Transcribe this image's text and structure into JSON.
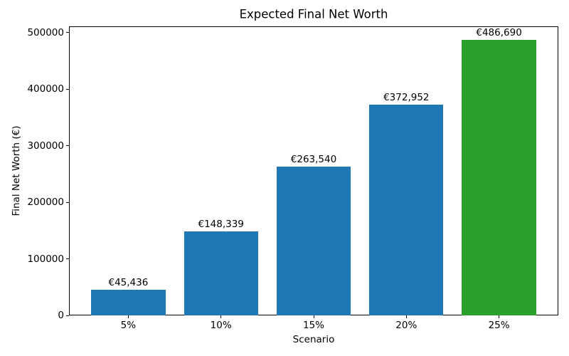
{
  "chart_data": {
    "type": "bar",
    "title": "Expected Final Net Worth",
    "xlabel": "Scenario",
    "ylabel": "Final Net Worth (€)",
    "categories": [
      "5%",
      "10%",
      "15%",
      "20%",
      "25%"
    ],
    "values": [
      45436,
      148339,
      263540,
      372952,
      486690
    ],
    "bar_labels": [
      "€45,436",
      "€148,339",
      "€263,540",
      "€372,952",
      "€486,690"
    ],
    "bar_colors": [
      "#1f77b4",
      "#1f77b4",
      "#1f77b4",
      "#1f77b4",
      "#2ca02c"
    ],
    "yticks": [
      0,
      100000,
      200000,
      300000,
      400000,
      500000
    ],
    "ytick_labels": [
      "0",
      "100000",
      "200000",
      "300000",
      "400000",
      "500000"
    ],
    "ylim": [
      0,
      511025
    ],
    "xlim": [
      -0.64,
      4.64
    ],
    "bar_width": 0.8,
    "grid": false,
    "legend": null,
    "colors": {
      "bar_blue": "#1f77b4",
      "bar_green": "#2ca02c",
      "axis": "#000000",
      "background": "#ffffff"
    }
  }
}
